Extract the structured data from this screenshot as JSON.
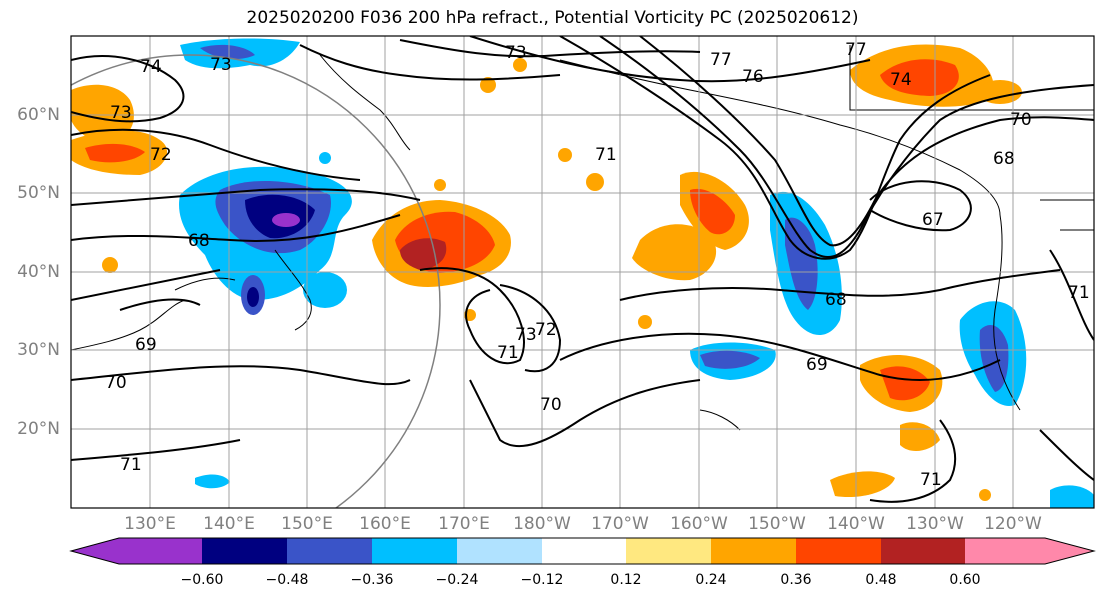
{
  "title": "2025020200 F036 200 hPa refract., Potential Vorticity PC (2025020612)",
  "lat_labels": [
    "60°N",
    "50°N",
    "40°N",
    "30°N",
    "20°N"
  ],
  "lon_labels": [
    "130°E",
    "140°E",
    "150°E",
    "160°E",
    "170°E",
    "180°W",
    "170°W",
    "160°W",
    "150°W",
    "140°W",
    "130°W",
    "120°W"
  ],
  "colorbar": {
    "ticks": [
      "−0.60",
      "−0.48",
      "−0.36",
      "−0.24",
      "−0.12",
      "0.12",
      "0.24",
      "0.36",
      "0.48",
      "0.60"
    ],
    "colors": [
      "#9932cc",
      "#000080",
      "#3a54c8",
      "#00bfff",
      "#b0e2ff",
      "#ffffff",
      "#ffe880",
      "#ffa500",
      "#ff4500",
      "#b22222",
      "#ff88aa"
    ]
  },
  "contour_labels": [
    "74",
    "73",
    "73",
    "77",
    "77",
    "76",
    "74",
    "73",
    "72",
    "71",
    "70",
    "68",
    "67",
    "68",
    "69",
    "70",
    "70",
    "69",
    "68",
    "71",
    "72",
    "73",
    "71",
    "71",
    "71"
  ],
  "colors": {
    "gridline": "#a0a0a0",
    "contour": "#000000",
    "circle": "#808080"
  }
}
